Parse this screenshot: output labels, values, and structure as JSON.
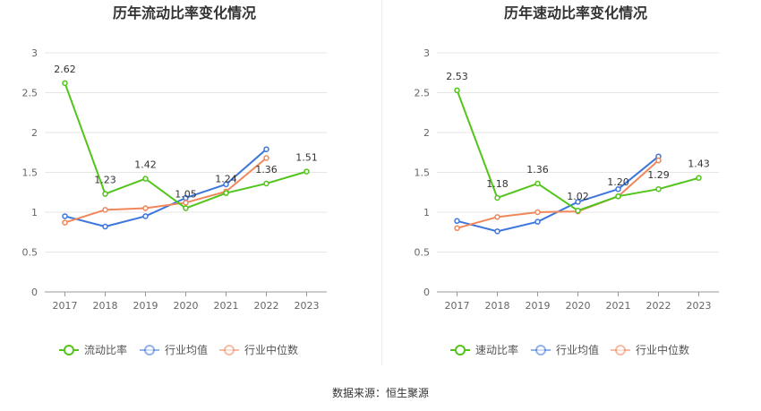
{
  "chart_data": [
    {
      "type": "line",
      "title": "历年流动比率变化情况",
      "categories": [
        "2017",
        "2018",
        "2019",
        "2020",
        "2021",
        "2022",
        "2023"
      ],
      "ylim": [
        0,
        3
      ],
      "yticks": [
        "0",
        "0.5",
        "1",
        "1.5",
        "2",
        "2.5",
        "3"
      ],
      "grid": true,
      "legend_position": "bottom",
      "series": [
        {
          "name": "流动比率",
          "color": "#52c41a",
          "values": [
            2.62,
            1.23,
            1.42,
            1.05,
            1.24,
            1.36,
            1.51
          ],
          "labels": [
            "2.62",
            "1.23",
            "1.42",
            "1.05",
            "1.24",
            "1.36",
            "1.51"
          ]
        },
        {
          "name": "行业均值",
          "color": "#3d76dd",
          "values": [
            0.95,
            0.82,
            0.95,
            1.18,
            1.35,
            1.79,
            null
          ]
        },
        {
          "name": "行业中位数",
          "color": "#f0875a",
          "values": [
            0.87,
            1.03,
            1.05,
            1.12,
            1.26,
            1.68,
            null
          ]
        }
      ]
    },
    {
      "type": "line",
      "title": "历年速动比率变化情况",
      "categories": [
        "2017",
        "2018",
        "2019",
        "2020",
        "2021",
        "2022",
        "2023"
      ],
      "ylim": [
        0,
        3
      ],
      "yticks": [
        "0",
        "0.5",
        "1",
        "1.5",
        "2",
        "2.5",
        "3"
      ],
      "grid": true,
      "legend_position": "bottom",
      "series": [
        {
          "name": "速动比率",
          "color": "#52c41a",
          "values": [
            2.53,
            1.18,
            1.36,
            1.02,
            1.2,
            1.29,
            1.43
          ],
          "labels": [
            "2.53",
            "1.18",
            "1.36",
            "1.02",
            "1.20",
            "1.29",
            "1.43"
          ]
        },
        {
          "name": "行业均值",
          "color": "#3d76dd",
          "values": [
            0.89,
            0.76,
            0.88,
            1.13,
            1.29,
            1.7,
            null
          ]
        },
        {
          "name": "行业中位数",
          "color": "#f0875a",
          "values": [
            0.8,
            0.94,
            1.0,
            1.01,
            1.2,
            1.65,
            null
          ]
        }
      ]
    }
  ],
  "footer": {
    "source": "数据来源：恒生聚源"
  }
}
